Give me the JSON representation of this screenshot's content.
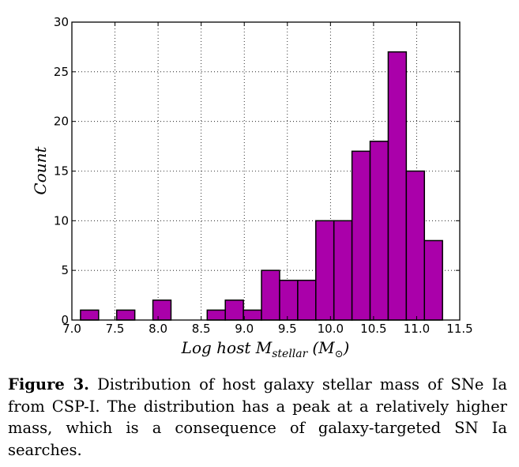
{
  "chart_data": {
    "type": "bar",
    "xlabel": "Log host M",
    "xlabel_sub": "stellar",
    "xlabel_unit_open": "(M",
    "xlabel_unit_sym": "⊙",
    "xlabel_unit_close": ")",
    "ylabel": "Count",
    "xlim": [
      7.0,
      11.5
    ],
    "ylim": [
      0,
      30
    ],
    "xticks": [
      "7.0",
      "7.5",
      "8.0",
      "8.5",
      "9.0",
      "9.5",
      "10.0",
      "10.5",
      "11.0",
      "11.5"
    ],
    "yticks": [
      "0",
      "5",
      "10",
      "15",
      "20",
      "25",
      "30"
    ],
    "grid": true,
    "bar_color": "#aa00aa",
    "bins": [
      {
        "x0": 7.1,
        "x1": 7.31,
        "value": 1
      },
      {
        "x0": 7.31,
        "x1": 7.52,
        "value": 0
      },
      {
        "x0": 7.52,
        "x1": 7.73,
        "value": 1
      },
      {
        "x0": 7.73,
        "x1": 7.94,
        "value": 0
      },
      {
        "x0": 7.94,
        "x1": 8.15,
        "value": 2
      },
      {
        "x0": 8.15,
        "x1": 8.36,
        "value": 0
      },
      {
        "x0": 8.36,
        "x1": 8.57,
        "value": 0
      },
      {
        "x0": 8.57,
        "x1": 8.78,
        "value": 1
      },
      {
        "x0": 8.78,
        "x1": 8.99,
        "value": 2
      },
      {
        "x0": 8.99,
        "x1": 9.2,
        "value": 1
      },
      {
        "x0": 9.2,
        "x1": 9.41,
        "value": 5
      },
      {
        "x0": 9.41,
        "x1": 9.62,
        "value": 4
      },
      {
        "x0": 9.62,
        "x1": 9.83,
        "value": 4
      },
      {
        "x0": 9.83,
        "x1": 10.04,
        "value": 10
      },
      {
        "x0": 10.04,
        "x1": 10.25,
        "value": 10
      },
      {
        "x0": 10.25,
        "x1": 10.46,
        "value": 17
      },
      {
        "x0": 10.46,
        "x1": 10.67,
        "value": 18
      },
      {
        "x0": 10.67,
        "x1": 10.88,
        "value": 27
      },
      {
        "x0": 10.88,
        "x1": 11.09,
        "value": 15
      },
      {
        "x0": 11.09,
        "x1": 11.3,
        "value": 8
      }
    ]
  },
  "caption": {
    "label": "Figure 3.",
    "text": " Distribution of host galaxy stellar mass of SNe Ia from CSP-I. The distribution has a peak at a relatively higher mass, which is a consequence of galaxy-targeted SN Ia searches."
  }
}
